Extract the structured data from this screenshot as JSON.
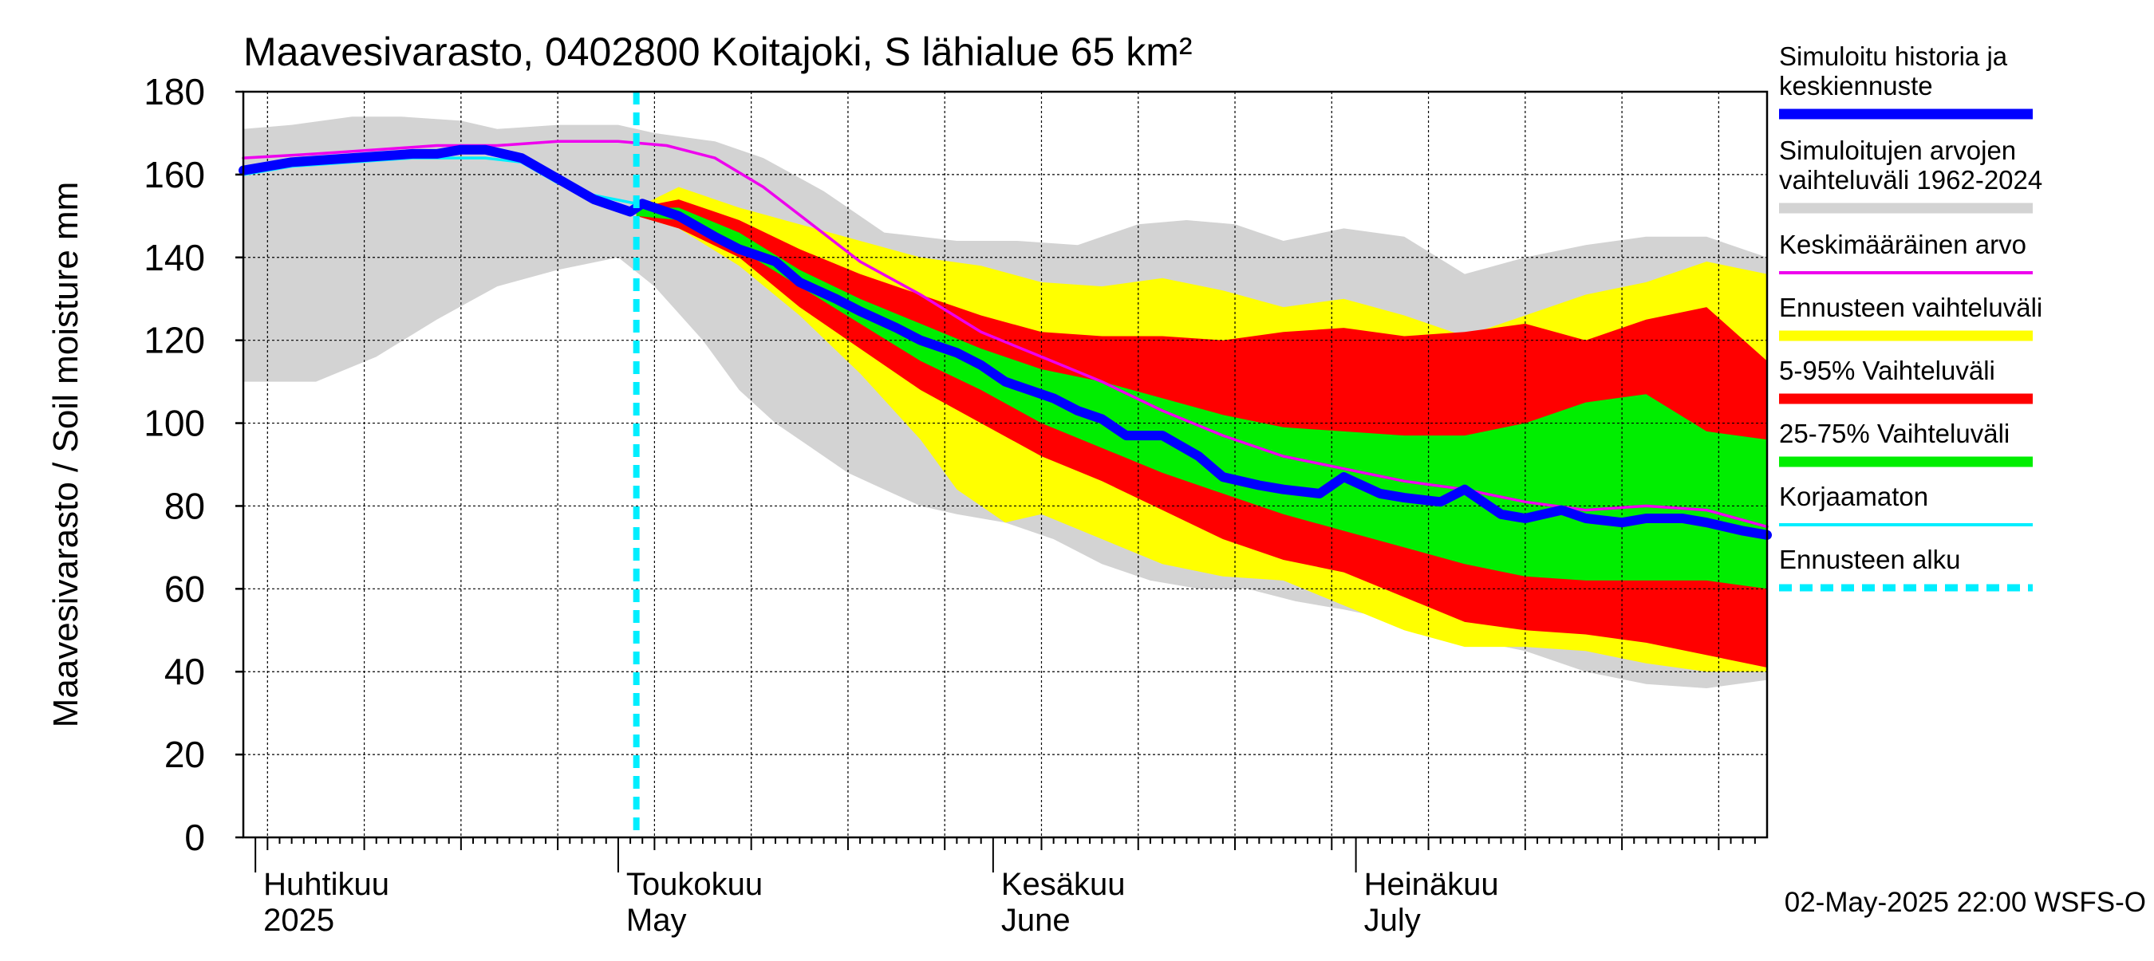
{
  "chart_data": {
    "type": "area",
    "title": "Maavesivarasto, 0402800 Koitajoki, S lähialue 65 km²",
    "ylabel": "Maavesivarasto / Soil moisture   mm",
    "xlabel": "",
    "ylim": [
      0,
      180
    ],
    "yticks": [
      0,
      20,
      40,
      60,
      80,
      100,
      120,
      140,
      160,
      180
    ],
    "xlim": [
      -1,
      125
    ],
    "grid": true,
    "forecast_start_day": 31.5,
    "x_unit": "day offset from 2025-04-01",
    "month_labels": [
      {
        "fi": "Huhtikuu",
        "en": "2025",
        "day": 0
      },
      {
        "fi": "Toukokuu",
        "en": "May",
        "day": 30
      },
      {
        "fi": "Kesäkuu",
        "en": "June",
        "day": 61
      },
      {
        "fi": "Heinäkuu",
        "en": "July",
        "day": 91
      }
    ],
    "footer": "02-May-2025 22:00 WSFS-O",
    "colors": {
      "historical_range": "#d3d3d3",
      "forecast_range": "#ffff00",
      "p5_95": "#ff0000",
      "p25_75": "#00ee00",
      "simulated": "#0000ff",
      "mean": "#ee00ee",
      "uncorrected": "#00eeff",
      "forecast_start": "#00eeff"
    },
    "legend": [
      {
        "label": "Simuloitu historia ja keskiennuste",
        "lines": [
          "Simuloitu historia ja",
          "keskiennuste"
        ],
        "style": "thick",
        "color": "#0000ff"
      },
      {
        "label": "Simuloitujen arvojen vaihteluväli 1962-2024",
        "lines": [
          "Simuloitujen arvojen",
          "vaihteluväli 1962-2024"
        ],
        "style": "band",
        "color": "#d3d3d3"
      },
      {
        "label": "Keskimääräinen arvo",
        "lines": [
          "Keskimääräinen arvo"
        ],
        "style": "thin",
        "color": "#ee00ee"
      },
      {
        "label": "Ennusteen vaihteluväli",
        "lines": [
          "Ennusteen vaihteluväli"
        ],
        "style": "band",
        "color": "#ffff00"
      },
      {
        "label": "5-95% Vaihteluväli",
        "lines": [
          "5-95% Vaihteluväli"
        ],
        "style": "band",
        "color": "#ff0000"
      },
      {
        "label": "25-75% Vaihteluväli",
        "lines": [
          "25-75% Vaihteluväli"
        ],
        "style": "band",
        "color": "#00ee00"
      },
      {
        "label": "Korjaamaton",
        "lines": [
          "Korjaamaton"
        ],
        "style": "thin",
        "color": "#00eeff"
      },
      {
        "label": "Ennusteen alku",
        "lines": [
          "Ennusteen alku"
        ],
        "style": "dashed",
        "color": "#00eeff"
      }
    ],
    "series": [
      {
        "name": "Simuloitujen arvojen vaihteluväli 1962-2024 (max)",
        "x": [
          -1,
          3,
          8,
          12,
          17,
          20,
          25,
          30,
          33,
          38,
          42,
          47,
          52,
          58,
          63,
          68,
          73,
          77,
          81,
          85,
          90,
          95,
          100,
          105,
          110,
          115,
          120,
          125
        ],
        "values": [
          171,
          172,
          174,
          174,
          173,
          171,
          172,
          172,
          170,
          168,
          164,
          156,
          146,
          144,
          144,
          143,
          148,
          149,
          148,
          144,
          147,
          145,
          136,
          140,
          143,
          145,
          145,
          140
        ]
      },
      {
        "name": "Simuloitujen arvojen vaihteluväli 1962-2024 (min)",
        "x": [
          -1,
          5,
          10,
          15,
          20,
          25,
          30,
          33,
          37,
          40,
          43,
          46,
          49,
          52,
          55,
          58,
          62,
          66,
          70,
          74,
          78,
          82,
          86,
          90,
          95,
          100,
          105,
          110,
          115,
          120,
          125
        ],
        "values": [
          110,
          110,
          116,
          125,
          133,
          137,
          140,
          133,
          120,
          108,
          100,
          94,
          88,
          84,
          80,
          78,
          76,
          72,
          66,
          62,
          60,
          60,
          57,
          55,
          52,
          48,
          45,
          40,
          37,
          36,
          38
        ]
      },
      {
        "name": "Ennusteen vaihteluväli (max)",
        "x": [
          31.5,
          35,
          40,
          45,
          50,
          55,
          60,
          65,
          70,
          75,
          80,
          85,
          90,
          95,
          100,
          105,
          110,
          115,
          120,
          125
        ],
        "values": [
          152,
          157,
          152,
          148,
          144,
          140,
          138,
          134,
          133,
          135,
          132,
          128,
          130,
          126,
          121,
          126,
          131,
          134,
          139,
          136
        ]
      },
      {
        "name": "Ennusteen vaihteluväli (min)",
        "x": [
          31.5,
          35,
          40,
          45,
          50,
          55,
          58,
          62,
          65,
          70,
          75,
          80,
          85,
          90,
          95,
          100,
          105,
          110,
          115,
          120,
          125
        ],
        "values": [
          150,
          147,
          138,
          126,
          112,
          96,
          84,
          76,
          78,
          72,
          66,
          63,
          62,
          56,
          50,
          46,
          46,
          45,
          42,
          40,
          40
        ]
      },
      {
        "name": "5-95% Vaihteluväli (high)",
        "x": [
          31.5,
          35,
          40,
          45,
          50,
          55,
          60,
          65,
          70,
          75,
          80,
          85,
          90,
          95,
          100,
          105,
          110,
          115,
          120,
          125
        ],
        "values": [
          152,
          154,
          149,
          142,
          136,
          131,
          126,
          122,
          121,
          121,
          120,
          122,
          123,
          121,
          122,
          124,
          120,
          125,
          128,
          115
        ]
      },
      {
        "name": "5-95% Vaihteluväli (low)",
        "x": [
          31.5,
          35,
          40,
          45,
          50,
          55,
          60,
          65,
          70,
          75,
          80,
          85,
          90,
          95,
          100,
          105,
          110,
          115,
          120,
          125
        ],
        "values": [
          150,
          147,
          140,
          128,
          118,
          108,
          100,
          92,
          86,
          79,
          72,
          67,
          64,
          58,
          52,
          50,
          49,
          47,
          44,
          41
        ]
      },
      {
        "name": "25-75% Vaihteluväli (high)",
        "x": [
          31.5,
          35,
          40,
          45,
          50,
          55,
          60,
          65,
          70,
          75,
          80,
          85,
          90,
          95,
          100,
          105,
          110,
          115,
          120,
          125
        ],
        "values": [
          152,
          152,
          146,
          137,
          130,
          124,
          118,
          113,
          110,
          106,
          102,
          99,
          98,
          97,
          97,
          100,
          105,
          107,
          98,
          96
        ]
      },
      {
        "name": "25-75% Vaihteluväli (low)",
        "x": [
          31.5,
          35,
          40,
          45,
          50,
          55,
          60,
          65,
          70,
          75,
          80,
          85,
          90,
          95,
          100,
          105,
          110,
          115,
          120,
          125
        ],
        "values": [
          150,
          149,
          142,
          133,
          124,
          115,
          108,
          100,
          94,
          88,
          83,
          78,
          74,
          70,
          66,
          63,
          62,
          62,
          62,
          60
        ]
      },
      {
        "name": "Keskimääräinen arvo",
        "x": [
          -1,
          5,
          10,
          15,
          20,
          25,
          30,
          34,
          38,
          42,
          46,
          50,
          55,
          60,
          65,
          70,
          75,
          80,
          85,
          90,
          95,
          100,
          105,
          110,
          115,
          120,
          125
        ],
        "values": [
          164,
          165,
          166,
          167,
          167,
          168,
          168,
          167,
          164,
          157,
          148,
          139,
          131,
          122,
          116,
          110,
          103,
          97,
          92,
          89,
          86,
          84,
          81,
          79,
          80,
          79,
          75
        ]
      },
      {
        "name": "Korjaamaton",
        "x": [
          -1,
          3,
          8,
          13,
          17,
          19,
          22,
          25,
          28,
          31.5
        ],
        "values": [
          160,
          162,
          163,
          164,
          164,
          164,
          163,
          158,
          155,
          153
        ]
      },
      {
        "name": "Simuloitu historia ja keskiennuste",
        "x": [
          -1,
          3,
          8,
          13,
          15,
          17,
          19,
          22,
          25,
          28,
          31,
          32,
          35,
          38,
          40,
          43,
          45,
          48,
          50,
          53,
          55,
          58,
          60,
          62,
          64,
          66,
          68,
          70,
          72,
          75,
          78,
          80,
          83,
          85,
          88,
          90,
          93,
          95,
          98,
          100,
          103,
          105,
          108,
          110,
          113,
          115,
          118,
          120,
          123,
          125
        ],
        "values": [
          161,
          163,
          164,
          165,
          165,
          166,
          166,
          164,
          159,
          154,
          151,
          153,
          150,
          145,
          142,
          139,
          134,
          130,
          127,
          123,
          120,
          117,
          114,
          110,
          108,
          106,
          103,
          101,
          97,
          97,
          92,
          87,
          85,
          84,
          83,
          87,
          83,
          82,
          81,
          84,
          78,
          77,
          79,
          77,
          76,
          77,
          77,
          76,
          74,
          73
        ]
      }
    ]
  }
}
